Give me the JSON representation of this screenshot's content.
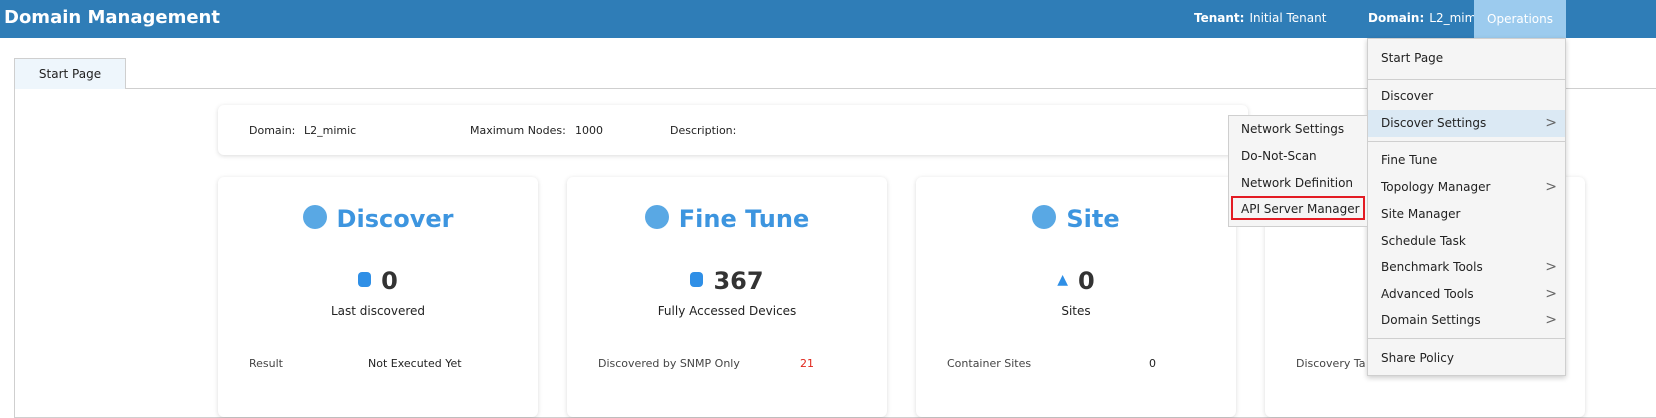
{
  "header": {
    "title": "Domain Management",
    "tenant_label": "Tenant:",
    "tenant": "Initial Tenant",
    "domain_label": "Domain:",
    "domain": "L2_mimic",
    "operations": "Operations"
  },
  "tabs": [
    {
      "label": "Start Page"
    }
  ],
  "infobar": {
    "domain_label": "Domain:",
    "domain": "L2_mimic",
    "max_nodes_label": "Maximum Nodes:",
    "max_nodes": "1000",
    "description_label": "Description:"
  },
  "cards": [
    {
      "title": "Discover",
      "value": "0",
      "label": "Last discovered",
      "row_label": "Result",
      "row_value": "Not Executed Yet"
    },
    {
      "title": "Fine Tune",
      "value": "367",
      "label": "Fully Accessed Devices",
      "row_label": "Discovered by SNMP Only",
      "row_value": "21"
    },
    {
      "title": "Site",
      "value": "0",
      "label": "Sites",
      "row_label": "Container Sites",
      "row_value": "0"
    },
    {
      "row_label": "Discovery Ta"
    }
  ],
  "menu": {
    "items": [
      "Start Page",
      "Discover",
      "Discover Settings",
      "Fine Tune",
      "Topology Manager",
      "Site Manager",
      "Schedule Task",
      "Benchmark Tools",
      "Advanced Tools",
      "Domain Settings",
      "Share Policy"
    ],
    "active": "Discover Settings"
  },
  "submenu": {
    "items": [
      "Network Settings",
      "Do-Not-Scan",
      "Network Definition",
      "API Server Manager"
    ],
    "highlighted": "API Server Manager",
    "highlight_color": "#e31b23"
  },
  "colors": {
    "header": "#2f7db7",
    "accent": "#3d95df",
    "alert": "#e0261b"
  }
}
